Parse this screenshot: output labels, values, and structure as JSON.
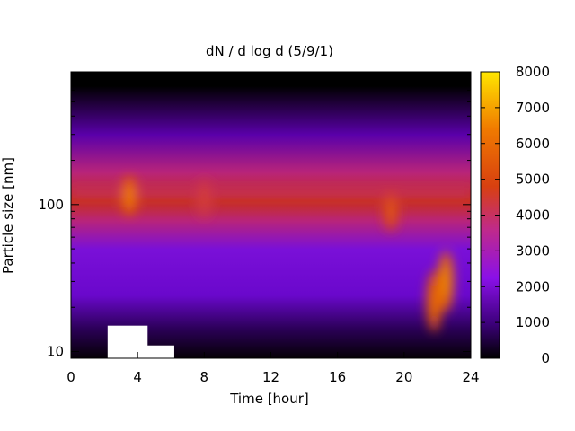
{
  "chart_data": {
    "type": "heatmap",
    "title": "dN / d log d (5/9/1)",
    "xlabel": "Time [hour]",
    "ylabel": "Particle size [nm]",
    "x_range": [
      0,
      24
    ],
    "x_ticks": [
      0,
      4,
      8,
      12,
      16,
      20,
      24
    ],
    "y_scale": "log",
    "y_range_nm": [
      9,
      800
    ],
    "y_ticks": [
      10,
      100
    ],
    "colorbar": {
      "range": [
        0,
        8000
      ],
      "ticks": [
        0,
        1000,
        2000,
        3000,
        4000,
        5000,
        6000,
        7000,
        8000
      ],
      "colormap": [
        "#000000",
        "#3c007a",
        "#8a10e8",
        "#c02a8a",
        "#d84010",
        "#f07a00",
        "#ffe600"
      ]
    },
    "features": [
      {
        "description": "persistent band of high concentration",
        "diameter_nm": 120,
        "time_hours": [
          0,
          24
        ],
        "peak_value": 4300
      },
      {
        "description": "local maximum",
        "time_hour": 3.5,
        "diameter_nm": 115,
        "value": 6000
      },
      {
        "description": "local maximum",
        "time_hour": 8.0,
        "diameter_nm": 110,
        "value": 4600
      },
      {
        "description": "local maximum",
        "time_hour": 19.2,
        "diameter_nm": 90,
        "value": 5200
      },
      {
        "description": "growth mode",
        "time_hour": 22.5,
        "diameter_nm": 30,
        "value": 6200
      },
      {
        "description": "growth mode",
        "time_hour": 21.8,
        "diameter_nm": 22,
        "value": 5800
      }
    ],
    "missing_data_regions": [
      {
        "time_hours": [
          2.2,
          4.6
        ],
        "diameter_nm": [
          9,
          15
        ]
      },
      {
        "time_hours": [
          4.5,
          6.2
        ],
        "diameter_nm": [
          9,
          11
        ]
      }
    ],
    "grid": false,
    "legend": "colorbar right"
  }
}
